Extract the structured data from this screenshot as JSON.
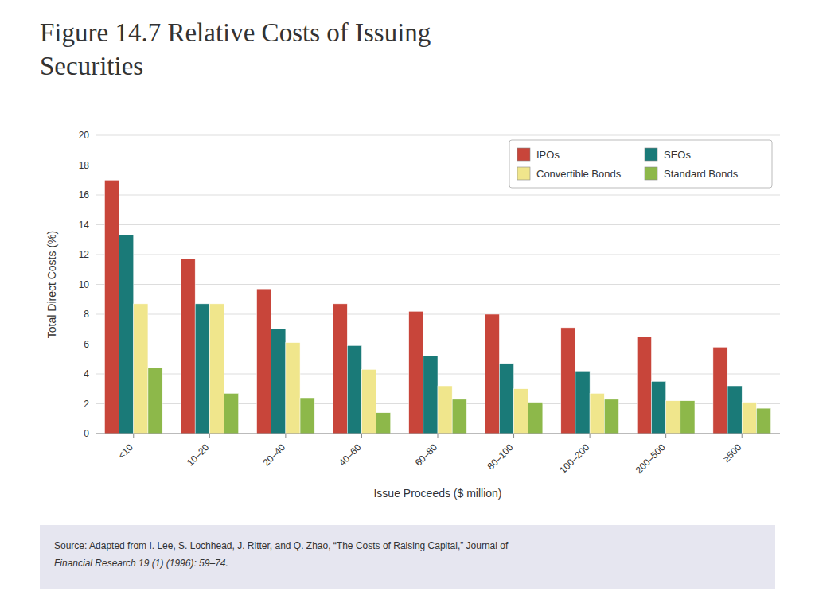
{
  "chart_data": {
    "type": "bar",
    "title": "Figure 14.7  Relative Costs of Issuing\nSecurities",
    "xlabel": "Issue Proceeds ($ million)",
    "ylabel": "Total Direct Costs (%)",
    "categories": [
      "<10",
      "10–20",
      "20–40",
      "40–60",
      "60–80",
      "80–100",
      "100–200",
      "200–500",
      "≥500"
    ],
    "series": [
      {
        "name": "IPOs",
        "color": "#C8453A",
        "values": [
          17.0,
          11.7,
          9.7,
          8.7,
          8.2,
          8.0,
          7.1,
          6.5,
          5.8
        ]
      },
      {
        "name": "SEOs",
        "color": "#1A7A78",
        "values": [
          13.3,
          8.7,
          7.0,
          5.9,
          5.2,
          4.7,
          4.2,
          3.5,
          3.2
        ]
      },
      {
        "name": "Convertible Bonds",
        "color": "#F0E68C",
        "values": [
          8.7,
          8.7,
          6.1,
          4.3,
          3.2,
          3.0,
          2.7,
          2.2,
          2.1
        ]
      },
      {
        "name": "Standard Bonds",
        "color": "#8DB84A",
        "values": [
          4.4,
          2.7,
          2.4,
          1.4,
          2.3,
          2.1,
          2.3,
          2.2,
          1.7
        ]
      }
    ],
    "ylim": [
      0,
      20
    ],
    "yticks": [
      0,
      2,
      4,
      6,
      8,
      10,
      12,
      14,
      16,
      18,
      20
    ],
    "grid": true,
    "legend": "upper right",
    "annotations": [
      "Source: Adapted from I. Lee, S. Lochhead, J. Ritter, and Q. Zhao, “The Costs of Raising Capital,” Journal of\nFinancial Research 19 (1) (1996): 59–74."
    ]
  }
}
